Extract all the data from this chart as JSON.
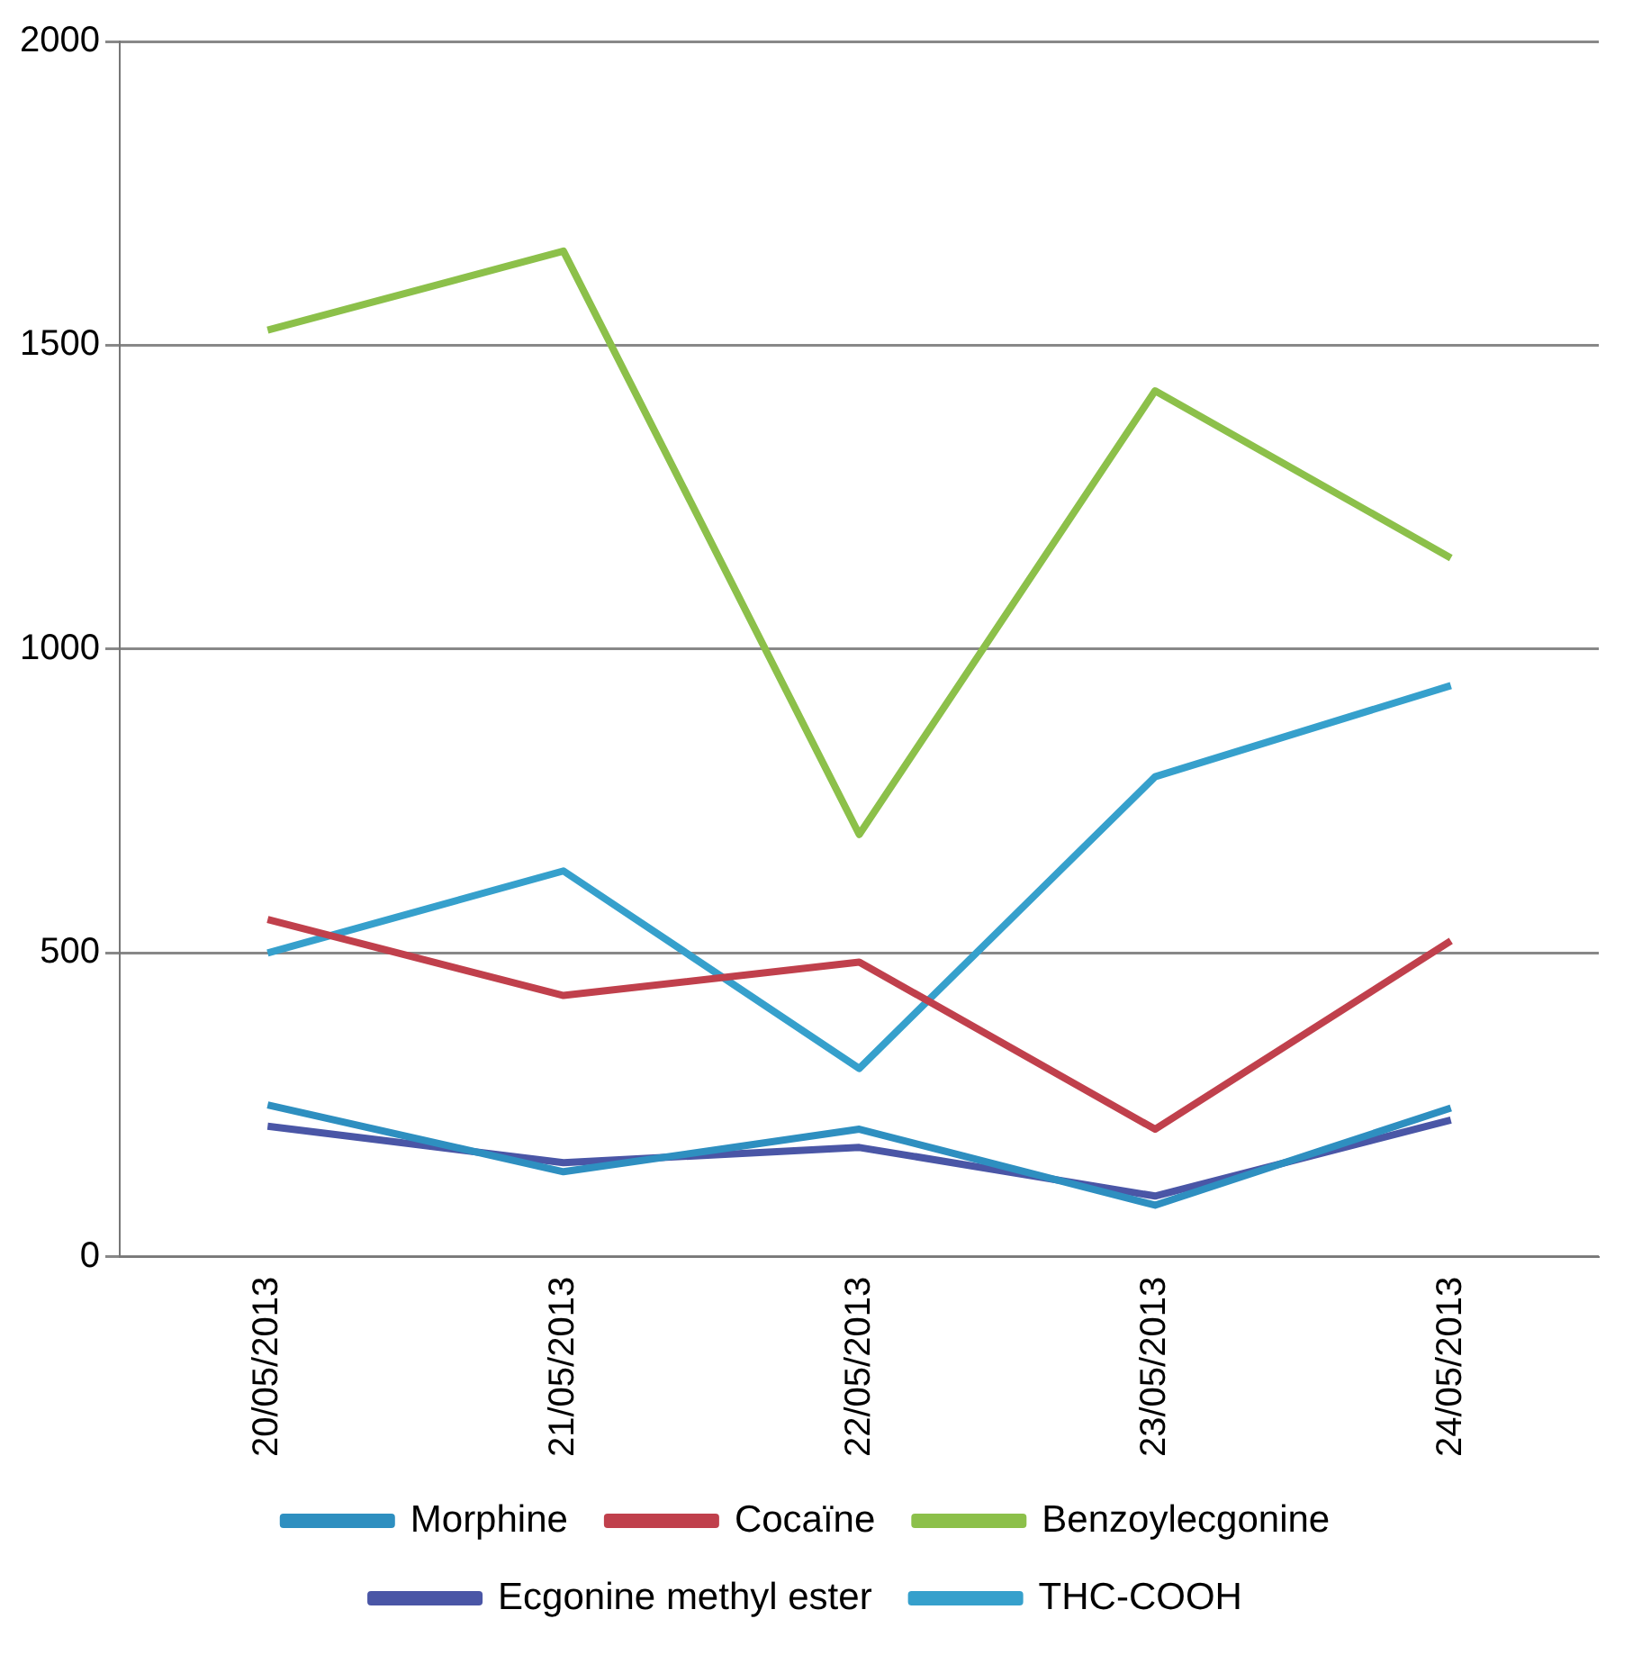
{
  "chart_data": {
    "type": "line",
    "categories": [
      "20/05/2013",
      "21/05/2013",
      "22/05/2013",
      "23/05/2013",
      "24/05/2013"
    ],
    "series": [
      {
        "name": "Morphine",
        "color": "#2e8fc0",
        "values": [
          250,
          140,
          210,
          85,
          245
        ]
      },
      {
        "name": "Cocaïne",
        "color": "#c0404c",
        "values": [
          555,
          430,
          485,
          210,
          520
        ]
      },
      {
        "name": "Benzoylecgonine",
        "color": "#8cc04a",
        "values": [
          1525,
          1655,
          695,
          1425,
          1150
        ]
      },
      {
        "name": "Ecgonine methyl ester",
        "color": "#4a56a6",
        "values": [
          215,
          155,
          180,
          100,
          225
        ]
      },
      {
        "name": "THC-COOH",
        "color": "#36a0cc",
        "values": [
          500,
          635,
          310,
          790,
          940
        ]
      }
    ],
    "ylim": [
      0,
      2000
    ],
    "yticks": [
      0,
      500,
      1000,
      1500,
      2000
    ],
    "grid": "y",
    "legend": "bottom",
    "marker": "none",
    "line_style": "solid"
  }
}
